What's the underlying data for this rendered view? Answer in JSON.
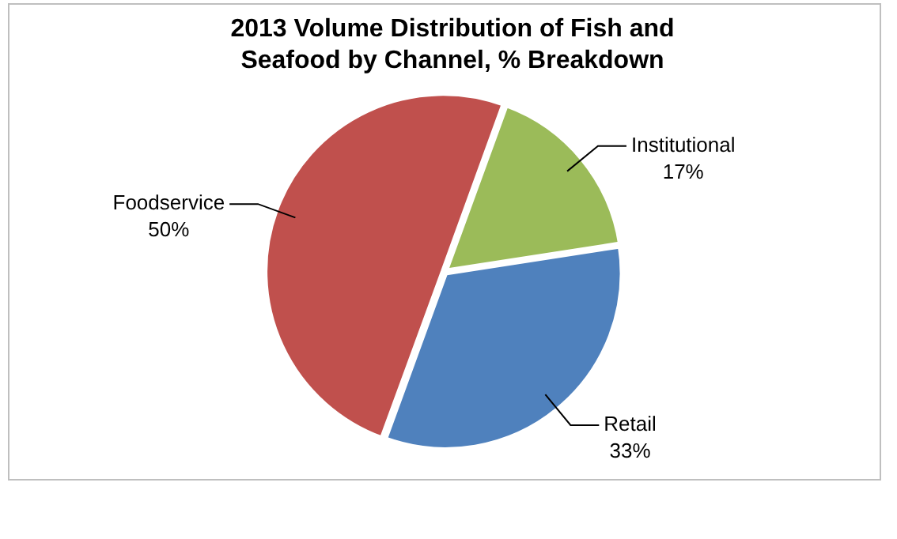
{
  "chart_data": {
    "type": "pie",
    "title": "2013 Volume Distribution of Fish and Seafood by Channel, % Breakdown",
    "categories": [
      "Institutional",
      "Retail",
      "Foodservice"
    ],
    "values": [
      17,
      33,
      50
    ],
    "colors": [
      "#9bbb59",
      "#4f81bd",
      "#c0504d"
    ],
    "value_labels": [
      "17%",
      "33%",
      "50%"
    ],
    "legend": false
  }
}
